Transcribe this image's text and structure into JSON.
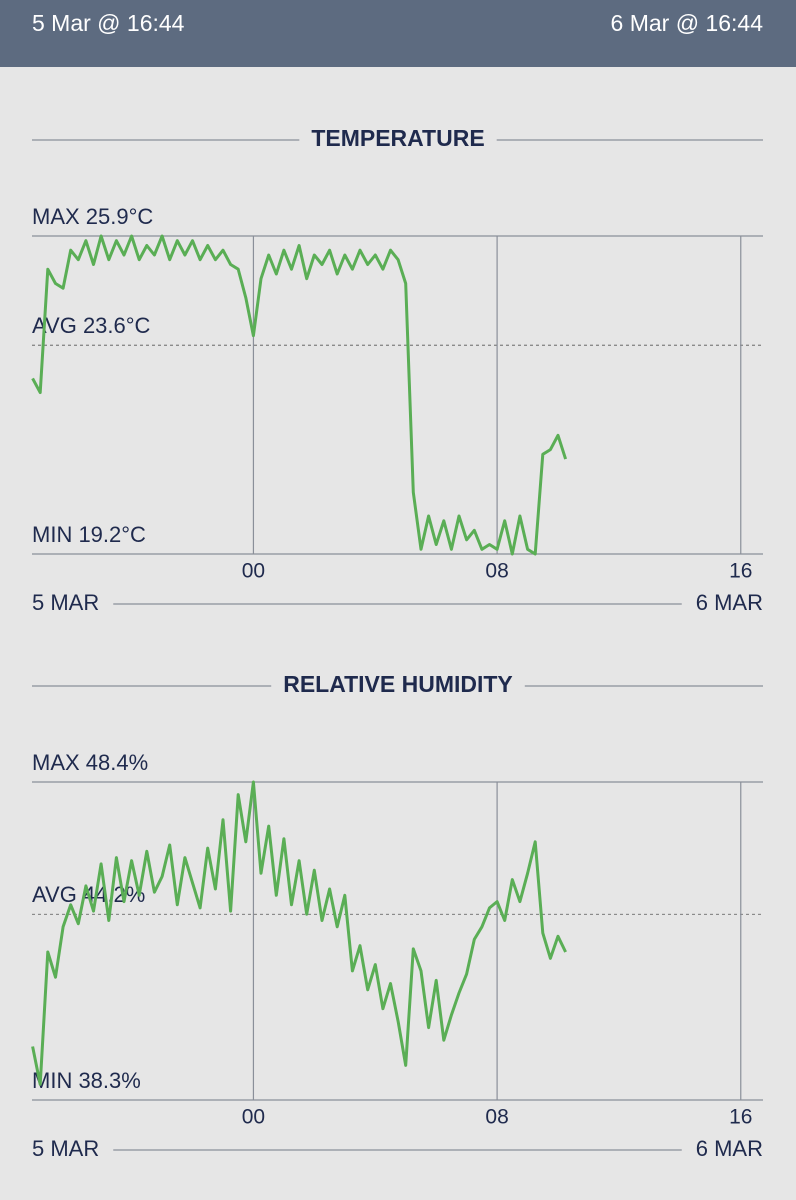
{
  "header": {
    "left": "5 Mar @ 16:44",
    "right": "6 Mar @ 16:44"
  },
  "chart_data": [
    {
      "type": "line",
      "title": "TEMPERATURE",
      "color": "#5aae55",
      "x_start_label": "5 MAR",
      "x_end_label": "6 MAR",
      "xlim": [
        -7.27,
        16.73
      ],
      "xticks": [
        {
          "value": 0,
          "label": "00"
        },
        {
          "value": 8,
          "label": "08"
        },
        {
          "value": 16,
          "label": "16"
        }
      ],
      "ylim": [
        19.2,
        25.9
      ],
      "yticks": [
        {
          "value": 25.9,
          "label": "MAX 25.9°C"
        },
        {
          "value": 23.6,
          "label": "AVG 23.6°C"
        },
        {
          "value": 19.2,
          "label": "MIN 19.2°C"
        }
      ],
      "x": [
        -7.25,
        -7,
        -6.75,
        -6.5,
        -6.25,
        -6,
        -5.75,
        -5.5,
        -5.25,
        -5,
        -4.75,
        -4.5,
        -4.25,
        -4,
        -3.75,
        -3.5,
        -3.25,
        -3,
        -2.75,
        -2.5,
        -2.25,
        -2,
        -1.75,
        -1.5,
        -1.25,
        -1,
        -0.75,
        -0.5,
        -0.25,
        0,
        0.25,
        0.5,
        0.75,
        1,
        1.25,
        1.5,
        1.75,
        2,
        2.25,
        2.5,
        2.75,
        3,
        3.25,
        3.5,
        3.75,
        4,
        4.25,
        4.5,
        4.75,
        5,
        5.25,
        5.5,
        5.75,
        6,
        6.25,
        6.5,
        6.75,
        7,
        7.25,
        7.5,
        7.75,
        8,
        8.25,
        8.5,
        8.75,
        9,
        9.25,
        9.5,
        9.75,
        10,
        10.25
      ],
      "values": [
        22.9,
        22.6,
        25.2,
        24.9,
        24.8,
        25.6,
        25.4,
        25.8,
        25.3,
        25.9,
        25.4,
        25.8,
        25.5,
        25.9,
        25.4,
        25.7,
        25.5,
        25.9,
        25.4,
        25.8,
        25.5,
        25.8,
        25.4,
        25.7,
        25.4,
        25.6,
        25.3,
        25.2,
        24.6,
        23.8,
        25.0,
        25.5,
        25.1,
        25.6,
        25.2,
        25.7,
        25.0,
        25.5,
        25.3,
        25.6,
        25.1,
        25.5,
        25.2,
        25.6,
        25.3,
        25.5,
        25.2,
        25.6,
        25.4,
        24.9,
        20.5,
        19.3,
        20.0,
        19.4,
        19.9,
        19.3,
        20.0,
        19.5,
        19.7,
        19.3,
        19.4,
        19.3,
        19.9,
        19.2,
        20.0,
        19.3,
        19.2,
        21.3,
        21.4,
        21.7,
        21.2
      ]
    },
    {
      "type": "line",
      "title": "RELATIVE HUMIDITY",
      "color": "#5aae55",
      "x_start_label": "5 MAR",
      "x_end_label": "6 MAR",
      "xlim": [
        -7.27,
        16.73
      ],
      "xticks": [
        {
          "value": 0,
          "label": "00"
        },
        {
          "value": 8,
          "label": "08"
        },
        {
          "value": 16,
          "label": "16"
        }
      ],
      "ylim": [
        38.3,
        48.4
      ],
      "yticks": [
        {
          "value": 48.4,
          "label": "MAX 48.4%"
        },
        {
          "value": 44.2,
          "label": "AVG 44.2%"
        },
        {
          "value": 38.3,
          "label": "MIN 38.3%"
        }
      ],
      "x": [
        -7.25,
        -7,
        -6.75,
        -6.5,
        -6.25,
        -6,
        -5.75,
        -5.5,
        -5.25,
        -5,
        -4.75,
        -4.5,
        -4.25,
        -4,
        -3.75,
        -3.5,
        -3.25,
        -3,
        -2.75,
        -2.5,
        -2.25,
        -2,
        -1.75,
        -1.5,
        -1.25,
        -1,
        -0.75,
        -0.5,
        -0.25,
        0,
        0.25,
        0.5,
        0.75,
        1,
        1.25,
        1.5,
        1.75,
        2,
        2.25,
        2.5,
        2.75,
        3,
        3.25,
        3.5,
        3.75,
        4,
        4.25,
        4.5,
        4.75,
        5,
        5.25,
        5.5,
        5.75,
        6,
        6.25,
        6.5,
        6.75,
        7,
        7.25,
        7.5,
        7.75,
        8,
        8.25,
        8.5,
        8.75,
        9,
        9.25,
        9.5,
        9.75,
        10,
        10.25
      ],
      "values": [
        40.0,
        38.8,
        43.0,
        42.2,
        43.8,
        44.5,
        43.9,
        45.1,
        44.3,
        45.8,
        44.0,
        46.0,
        44.6,
        45.9,
        44.8,
        46.2,
        44.9,
        45.4,
        46.4,
        44.5,
        46.0,
        45.2,
        44.4,
        46.3,
        45.0,
        47.2,
        44.3,
        48.0,
        46.5,
        48.4,
        45.5,
        47.0,
        44.8,
        46.6,
        44.5,
        45.9,
        44.2,
        45.6,
        44.0,
        45.0,
        43.8,
        44.8,
        42.4,
        43.2,
        41.8,
        42.6,
        41.2,
        42.0,
        40.8,
        39.4,
        43.1,
        42.4,
        40.6,
        42.1,
        40.2,
        41.0,
        41.7,
        42.3,
        43.4,
        43.8,
        44.4,
        44.6,
        44.0,
        45.3,
        44.6,
        45.5,
        46.5,
        43.6,
        42.8,
        43.5,
        43.0
      ]
    }
  ]
}
